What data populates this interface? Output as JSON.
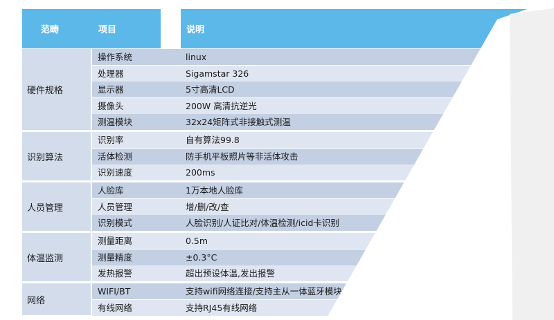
{
  "header": {
    "col_category": "范畴",
    "col_item": "项目",
    "col_desc": "说明"
  },
  "groups": [
    {
      "category": "硬件规格",
      "rows": [
        {
          "item": "操作系统",
          "desc": "linux"
        },
        {
          "item": "处理器",
          "desc": "Sigamstar 326"
        },
        {
          "item": "显示器",
          "desc": "5寸高清LCD"
        },
        {
          "item": "摄像头",
          "desc": "200W 高清抗逆光"
        },
        {
          "item": "测温模块",
          "desc": "32x24矩阵式非接触式测温"
        }
      ]
    },
    {
      "category": "识别算法",
      "rows": [
        {
          "item": "识别率",
          "desc": "自有算法99.8"
        },
        {
          "item": "活体检测",
          "desc": "防手机平板照片等非活体攻击"
        },
        {
          "item": "识别速度",
          "desc": "200ms"
        }
      ]
    },
    {
      "category": "人员管理",
      "rows": [
        {
          "item": "人脸库",
          "desc": "1万本地人脸库"
        },
        {
          "item": "人员管理",
          "desc": "增/删/改/查"
        },
        {
          "item": "识别模式",
          "desc": "人脸识别/人证比对/体温检测/icid卡识别"
        }
      ]
    },
    {
      "category": "体温监测",
      "rows": [
        {
          "item": "测量距离",
          "desc": "0.5m"
        },
        {
          "item": "测量精度",
          "desc": "±0.3°C"
        },
        {
          "item": "发热报警",
          "desc": "超出预设体温,发出报警"
        }
      ]
    },
    {
      "category": "网络",
      "rows": [
        {
          "item": "WIFI/BT",
          "desc": "支持wifi网络连接/支持主从一体蓝牙模块"
        },
        {
          "item": "有线网络",
          "desc": "支持RJ45有线网络"
        }
      ]
    }
  ]
}
